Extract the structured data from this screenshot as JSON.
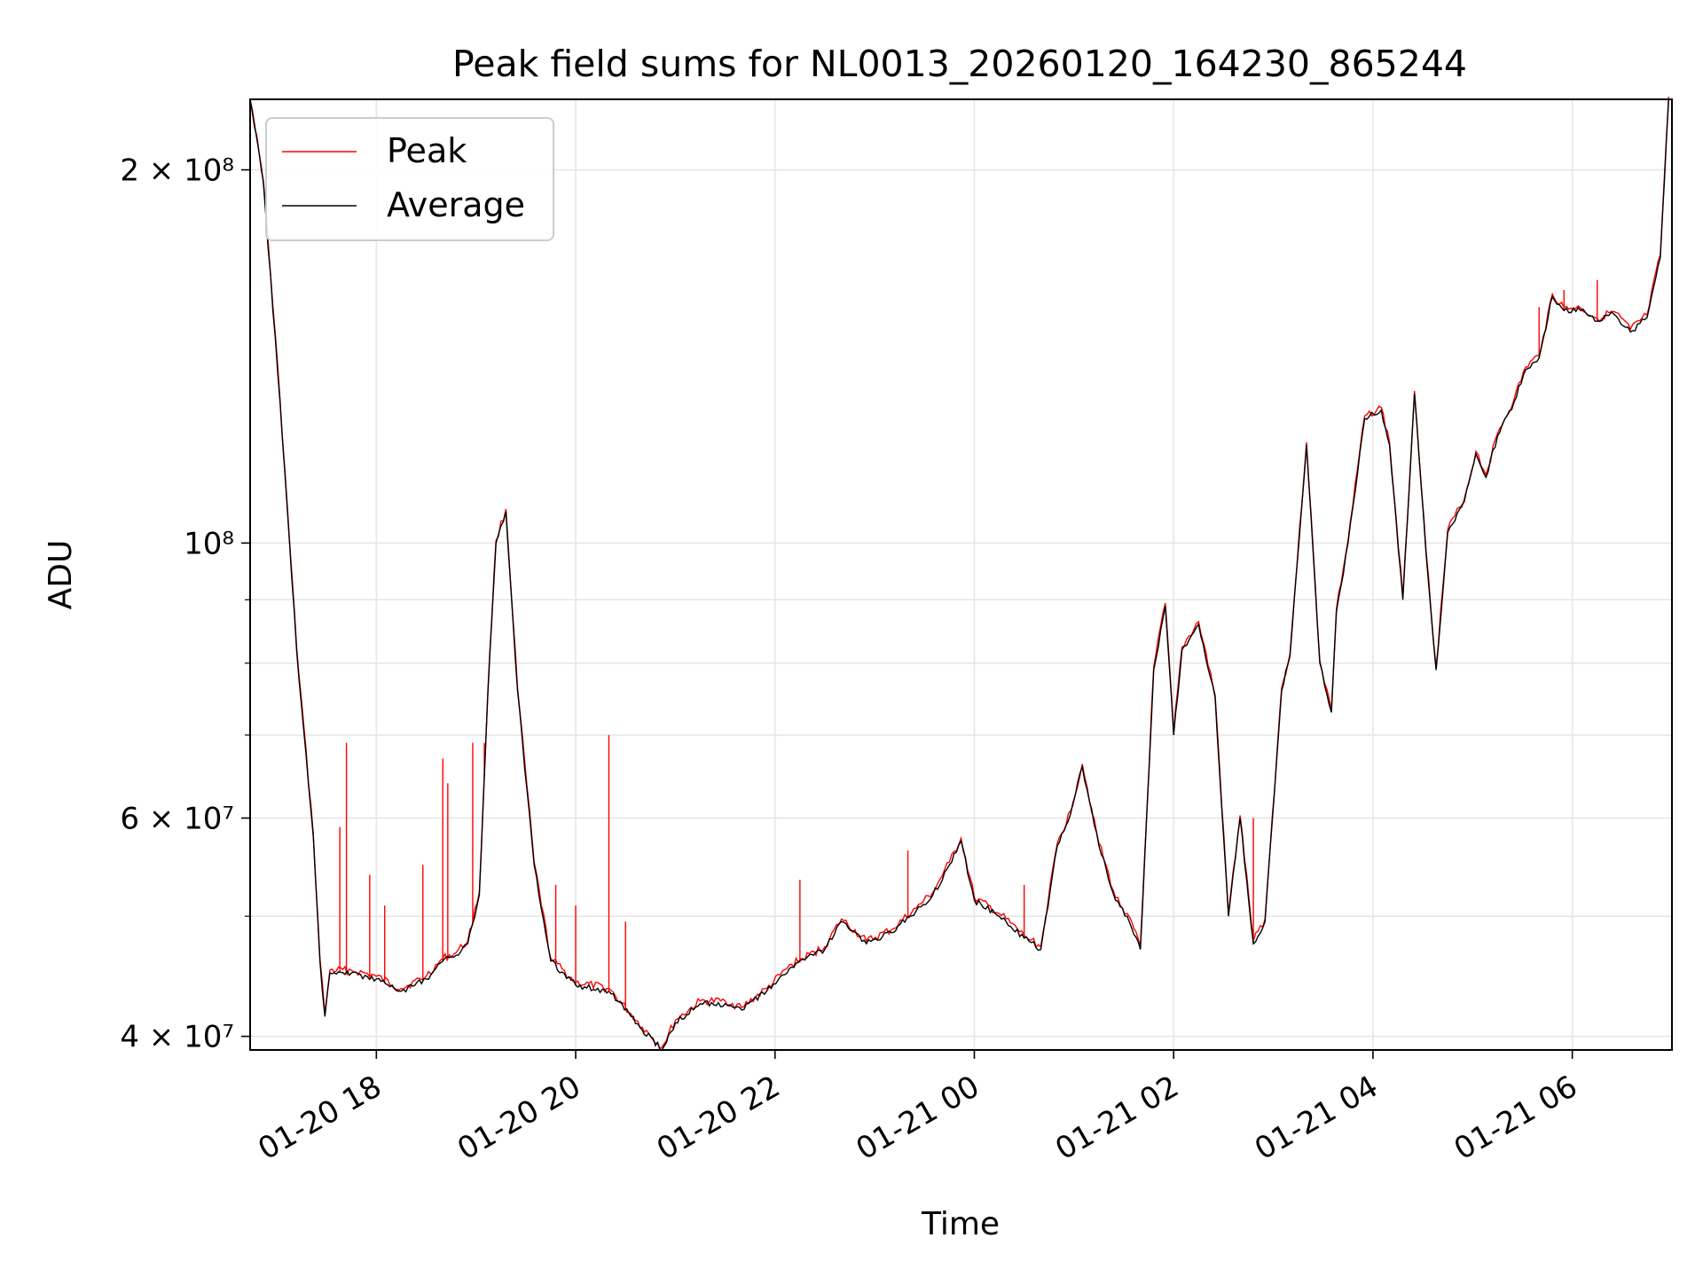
{
  "chart_data": {
    "type": "line",
    "title": "Peak field sums for NL0013_20260120_164230_865244",
    "xlabel": "Time",
    "ylabel": "ADU",
    "yscale": "log",
    "ylim": [
      39000000,
      228000000
    ],
    "xlim": [
      "2026-01-20 16:44",
      "2026-01-21 07:00"
    ],
    "grid": true,
    "legend_position": "upper-left",
    "legend": [
      "Peak",
      "Average"
    ],
    "x_ticks": [
      {
        "value": "2026-01-20 18:00",
        "label": "01-20 18"
      },
      {
        "value": "2026-01-20 20:00",
        "label": "01-20 20"
      },
      {
        "value": "2026-01-20 22:00",
        "label": "01-20 22"
      },
      {
        "value": "2026-01-21 00:00",
        "label": "01-21 00"
      },
      {
        "value": "2026-01-21 02:00",
        "label": "01-21 02"
      },
      {
        "value": "2026-01-21 04:00",
        "label": "01-21 04"
      },
      {
        "value": "2026-01-21 06:00",
        "label": "01-21 06"
      }
    ],
    "y_ticks_major": [
      {
        "value": 40000000,
        "label": "4 × 10⁷"
      },
      {
        "value": 60000000,
        "label": "6 × 10⁷"
      },
      {
        "value": 100000000,
        "label": "10⁸"
      },
      {
        "value": 200000000,
        "label": "2 × 10⁸"
      }
    ],
    "y_ticks_minor": [
      50000000,
      70000000,
      80000000,
      90000000
    ],
    "series": [
      {
        "name": "Average",
        "color": "#000000",
        "x": [
          "2026-01-20 16:44",
          "2026-01-20 16:52",
          "2026-01-20 17:02",
          "2026-01-20 17:12",
          "2026-01-20 17:22",
          "2026-01-20 17:26",
          "2026-01-20 17:29",
          "2026-01-20 17:32",
          "2026-01-20 17:45",
          "2026-01-20 18:00",
          "2026-01-20 18:15",
          "2026-01-20 18:30",
          "2026-01-20 18:40",
          "2026-01-20 18:48",
          "2026-01-20 18:55",
          "2026-01-20 19:02",
          "2026-01-20 19:07",
          "2026-01-20 19:12",
          "2026-01-20 19:18",
          "2026-01-20 19:25",
          "2026-01-20 19:35",
          "2026-01-20 19:45",
          "2026-01-20 20:00",
          "2026-01-20 20:20",
          "2026-01-20 20:40",
          "2026-01-20 20:52",
          "2026-01-20 21:00",
          "2026-01-20 21:15",
          "2026-01-20 21:30",
          "2026-01-20 21:40",
          "2026-01-20 21:55",
          "2026-01-20 22:10",
          "2026-01-20 22:30",
          "2026-01-20 22:40",
          "2026-01-20 22:55",
          "2026-01-20 23:10",
          "2026-01-20 23:25",
          "2026-01-20 23:35",
          "2026-01-20 23:45",
          "2026-01-20 23:52",
          "2026-01-21 00:00",
          "2026-01-21 00:15",
          "2026-01-21 00:30",
          "2026-01-21 00:40",
          "2026-01-21 00:50",
          "2026-01-21 00:58",
          "2026-01-21 01:05",
          "2026-01-21 01:15",
          "2026-01-21 01:25",
          "2026-01-21 01:32",
          "2026-01-21 01:40",
          "2026-01-21 01:48",
          "2026-01-21 01:55",
          "2026-01-21 02:00",
          "2026-01-21 02:05",
          "2026-01-21 02:15",
          "2026-01-21 02:25",
          "2026-01-21 02:33",
          "2026-01-21 02:40",
          "2026-01-21 02:48",
          "2026-01-21 02:55",
          "2026-01-21 03:05",
          "2026-01-21 03:10",
          "2026-01-21 03:20",
          "2026-01-21 03:28",
          "2026-01-21 03:35",
          "2026-01-21 03:38",
          "2026-01-21 03:45",
          "2026-01-21 03:55",
          "2026-01-21 04:05",
          "2026-01-21 04:10",
          "2026-01-21 04:18",
          "2026-01-21 04:25",
          "2026-01-21 04:32",
          "2026-01-21 04:38",
          "2026-01-21 04:45",
          "2026-01-21 04:55",
          "2026-01-21 05:02",
          "2026-01-21 05:08",
          "2026-01-21 05:15",
          "2026-01-21 05:25",
          "2026-01-21 05:32",
          "2026-01-21 05:40",
          "2026-01-21 05:48",
          "2026-01-21 05:55",
          "2026-01-21 06:05",
          "2026-01-21 06:15",
          "2026-01-21 06:25",
          "2026-01-21 06:35",
          "2026-01-21 06:45",
          "2026-01-21 06:53",
          "2026-01-21 06:58"
        ],
        "values": [
          228000000,
          195000000,
          130000000,
          82000000,
          58000000,
          46000000,
          41500000,
          45000000,
          45000000,
          44500000,
          43500000,
          44500000,
          46000000,
          46500000,
          47500000,
          52000000,
          75000000,
          100000000,
          106000000,
          76000000,
          55000000,
          46000000,
          44000000,
          43500000,
          40500000,
          39000000,
          41000000,
          42500000,
          42500000,
          42000000,
          43500000,
          45500000,
          47000000,
          49500000,
          47500000,
          48500000,
          50500000,
          52000000,
          55000000,
          57500000,
          51500000,
          50000000,
          48000000,
          47000000,
          57000000,
          60500000,
          66000000,
          57000000,
          51500000,
          50000000,
          47000000,
          79000000,
          89000000,
          70000000,
          82000000,
          86000000,
          75000000,
          50000000,
          60000000,
          47500000,
          49500000,
          76000000,
          81000000,
          120000000,
          80000000,
          73000000,
          88000000,
          100000000,
          126000000,
          128000000,
          120000000,
          90000000,
          132000000,
          98000000,
          79000000,
          102000000,
          108000000,
          118000000,
          113000000,
          122000000,
          130000000,
          138000000,
          141000000,
          158000000,
          154000000,
          154000000,
          151000000,
          153000000,
          148000000,
          152000000,
          170000000,
          228000000
        ]
      },
      {
        "name": "Peak",
        "color": "#ff0000",
        "spikes": [
          {
            "x": "2026-01-20 17:20",
            "y": 62000000
          },
          {
            "x": "2026-01-20 17:38",
            "y": 59000000
          },
          {
            "x": "2026-01-20 17:42",
            "y": 69000000
          },
          {
            "x": "2026-01-20 17:56",
            "y": 54000000
          },
          {
            "x": "2026-01-20 18:05",
            "y": 51000000
          },
          {
            "x": "2026-01-20 18:28",
            "y": 55000000
          },
          {
            "x": "2026-01-20 18:40",
            "y": 67000000
          },
          {
            "x": "2026-01-20 18:43",
            "y": 64000000
          },
          {
            "x": "2026-01-20 18:58",
            "y": 69000000
          },
          {
            "x": "2026-01-20 19:05",
            "y": 69000000
          },
          {
            "x": "2026-01-20 19:48",
            "y": 53000000
          },
          {
            "x": "2026-01-20 20:00",
            "y": 51000000
          },
          {
            "x": "2026-01-20 20:20",
            "y": 70000000
          },
          {
            "x": "2026-01-20 20:30",
            "y": 49500000
          },
          {
            "x": "2026-01-20 22:15",
            "y": 53500000
          },
          {
            "x": "2026-01-20 23:20",
            "y": 56500000
          },
          {
            "x": "2026-01-21 00:30",
            "y": 53000000
          },
          {
            "x": "2026-01-21 02:48",
            "y": 60000000
          },
          {
            "x": "2026-01-21 05:40",
            "y": 155000000
          },
          {
            "x": "2026-01-21 05:55",
            "y": 160000000
          },
          {
            "x": "2026-01-21 06:15",
            "y": 163000000
          }
        ]
      }
    ]
  }
}
